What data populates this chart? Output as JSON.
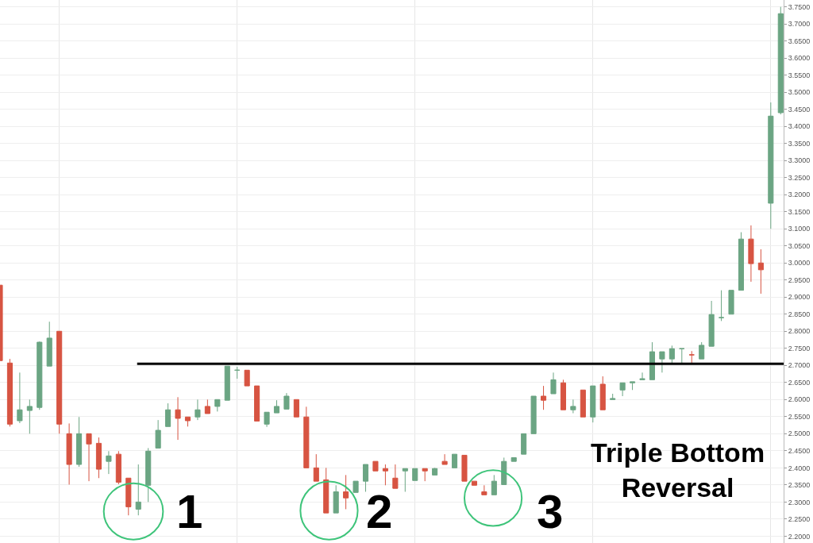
{
  "chart_data": {
    "type": "candlestick",
    "categories": [
      null,
      null,
      null,
      null,
      null,
      null,
      null,
      null,
      null,
      null,
      null,
      null,
      null,
      null,
      null,
      null,
      null,
      null,
      null,
      null,
      null,
      null,
      null,
      null,
      null,
      null,
      null,
      null,
      null,
      null,
      null,
      null,
      null,
      null,
      null,
      null,
      null,
      null,
      null,
      null,
      null,
      null,
      null,
      null,
      null,
      null,
      null,
      null,
      null,
      null,
      null,
      null,
      null,
      null,
      null,
      null,
      null,
      null,
      null,
      null,
      null,
      null,
      null,
      null,
      null,
      null,
      null,
      null,
      null,
      null,
      null,
      null,
      null,
      null,
      null,
      null,
      null,
      null,
      null,
      null
    ],
    "ohlc": [
      [
        2.935,
        2.935,
        2.714,
        2.714
      ],
      [
        2.707,
        2.719,
        2.521,
        2.528
      ],
      [
        2.538,
        2.679,
        2.531,
        2.57
      ],
      [
        2.568,
        2.6,
        2.5,
        2.58
      ],
      [
        2.577,
        2.77,
        2.57,
        2.768
      ],
      [
        2.698,
        2.828,
        2.698,
        2.78
      ],
      [
        2.8,
        2.8,
        2.5,
        2.528
      ],
      [
        2.5,
        2.53,
        2.351,
        2.41
      ],
      [
        2.41,
        2.549,
        2.403,
        2.5
      ],
      [
        2.5,
        2.5,
        2.361,
        2.47
      ],
      [
        2.472,
        2.489,
        2.37,
        2.396
      ],
      [
        2.419,
        2.449,
        2.382,
        2.435
      ],
      [
        2.44,
        2.449,
        2.352,
        2.358
      ],
      [
        2.37,
        2.37,
        2.261,
        2.286
      ],
      [
        2.279,
        2.41,
        2.261,
        2.3
      ],
      [
        2.349,
        2.458,
        2.3,
        2.449
      ],
      [
        2.458,
        2.54,
        2.458,
        2.51
      ],
      [
        2.521,
        2.589,
        2.521,
        2.57
      ],
      [
        2.57,
        2.607,
        2.482,
        2.545
      ],
      [
        2.549,
        2.549,
        2.521,
        2.538
      ],
      [
        2.549,
        2.6,
        2.54,
        2.57
      ],
      [
        2.58,
        2.6,
        2.559,
        2.559
      ],
      [
        2.58,
        2.6,
        2.565,
        2.6
      ],
      [
        2.598,
        2.698,
        2.598,
        2.698
      ],
      [
        2.686,
        2.696,
        2.661,
        2.686
      ],
      [
        2.686,
        2.686,
        2.64,
        2.64
      ],
      [
        2.64,
        2.64,
        2.537,
        2.537
      ],
      [
        2.528,
        2.563,
        2.52,
        2.563
      ],
      [
        2.561,
        2.598,
        2.561,
        2.58
      ],
      [
        2.572,
        2.619,
        2.572,
        2.61
      ],
      [
        2.6,
        2.6,
        2.549,
        2.549
      ],
      [
        2.549,
        2.579,
        2.4,
        2.4
      ],
      [
        2.4,
        2.44,
        2.361,
        2.361
      ],
      [
        2.365,
        2.4,
        2.268,
        2.268
      ],
      [
        2.268,
        2.349,
        2.268,
        2.33
      ],
      [
        2.33,
        2.379,
        2.279,
        2.312
      ],
      [
        2.328,
        2.361,
        2.328,
        2.361
      ],
      [
        2.361,
        2.41,
        2.33,
        2.41
      ],
      [
        2.419,
        2.419,
        2.391,
        2.391
      ],
      [
        2.398,
        2.41,
        2.349,
        2.391
      ],
      [
        2.37,
        2.41,
        2.34,
        2.34
      ],
      [
        2.391,
        2.398,
        2.33,
        2.398
      ],
      [
        2.363,
        2.398,
        2.363,
        2.398
      ],
      [
        2.398,
        2.398,
        2.361,
        2.391
      ],
      [
        2.379,
        2.4,
        2.379,
        2.398
      ],
      [
        2.419,
        2.44,
        2.41,
        2.41
      ],
      [
        2.4,
        2.44,
        2.4,
        2.44
      ],
      [
        2.437,
        2.437,
        2.361,
        2.361
      ],
      [
        2.361,
        2.361,
        2.349,
        2.349
      ],
      [
        2.33,
        2.349,
        2.321,
        2.321
      ],
      [
        2.321,
        2.379,
        2.321,
        2.361
      ],
      [
        2.351,
        2.43,
        2.351,
        2.419
      ],
      [
        2.419,
        2.43,
        2.419,
        2.43
      ],
      [
        2.44,
        2.5,
        2.44,
        2.5
      ],
      [
        2.5,
        2.61,
        2.5,
        2.61
      ],
      [
        2.61,
        2.64,
        2.57,
        2.598
      ],
      [
        2.617,
        2.679,
        2.617,
        2.658
      ],
      [
        2.649,
        2.658,
        2.57,
        2.57
      ],
      [
        2.57,
        2.6,
        2.56,
        2.58
      ],
      [
        2.628,
        2.628,
        2.549,
        2.549
      ],
      [
        2.549,
        2.64,
        2.533,
        2.64
      ],
      [
        2.645,
        2.668,
        2.57,
        2.57
      ],
      [
        2.6,
        2.617,
        2.6,
        2.603
      ],
      [
        2.628,
        2.649,
        2.61,
        2.649
      ],
      [
        2.649,
        2.652,
        2.628,
        2.652
      ],
      [
        2.658,
        2.679,
        2.658,
        2.661
      ],
      [
        2.658,
        2.768,
        2.658,
        2.74
      ],
      [
        2.719,
        2.74,
        2.679,
        2.74
      ],
      [
        2.719,
        2.758,
        2.703,
        2.749
      ],
      [
        2.749,
        2.749,
        2.703,
        2.749
      ],
      [
        2.731,
        2.742,
        2.703,
        2.731
      ],
      [
        2.719,
        2.768,
        2.719,
        2.759
      ],
      [
        2.756,
        2.889,
        2.756,
        2.849
      ],
      [
        2.84,
        2.92,
        2.83,
        2.84
      ],
      [
        2.85,
        2.92,
        2.85,
        2.92
      ],
      [
        2.92,
        3.09,
        2.92,
        3.07
      ],
      [
        3.07,
        3.11,
        2.945,
        2.998
      ],
      [
        3.0,
        3.04,
        2.91,
        2.98
      ],
      [
        3.175,
        3.47,
        3.1,
        3.43
      ],
      [
        3.44,
        3.75,
        3.435,
        3.73
      ]
    ],
    "colors": [
      "#d75442",
      "#d75442",
      "#6ba583",
      "#6ba583",
      "#6ba583",
      "#6ba583",
      "#d75442",
      "#d75442",
      "#6ba583",
      "#d75442",
      "#d75442",
      "#6ba583",
      "#d75442",
      "#d75442",
      "#6ba583",
      "#6ba583",
      "#6ba583",
      "#6ba583",
      "#d75442",
      "#d75442",
      "#6ba583",
      "#d75442",
      "#6ba583",
      "#6ba583",
      "#6ba583",
      "#d75442",
      "#d75442",
      "#6ba583",
      "#6ba583",
      "#6ba583",
      "#d75442",
      "#d75442",
      "#d75442",
      "#d75442",
      "#6ba583",
      "#d75442",
      "#6ba583",
      "#6ba583",
      "#d75442",
      "#d75442",
      "#d75442",
      "#6ba583",
      "#6ba583",
      "#d75442",
      "#6ba583",
      "#d75442",
      "#6ba583",
      "#d75442",
      "#d75442",
      "#d75442",
      "#6ba583",
      "#6ba583",
      "#6ba583",
      "#6ba583",
      "#6ba583",
      "#d75442",
      "#6ba583",
      "#d75442",
      "#6ba583",
      "#d75442",
      "#6ba583",
      "#d75442",
      "#6ba583",
      "#6ba583",
      "#6ba583",
      "#6ba583",
      "#6ba583",
      "#6ba583",
      "#6ba583",
      "#6ba583",
      "#d75442",
      "#6ba583",
      "#6ba583",
      "#6ba583",
      "#6ba583",
      "#6ba583",
      "#d75442",
      "#d75442",
      "#6ba583",
      "#6ba583"
    ],
    "ylim": [
      2.18,
      3.77
    ],
    "yticks": [
      {
        "value": 2.2,
        "label": "2.2000"
      },
      {
        "value": 2.25,
        "label": "2.2500"
      },
      {
        "value": 2.3,
        "label": "2.3000"
      },
      {
        "value": 2.35,
        "label": "2.3500"
      },
      {
        "value": 2.4,
        "label": "2.4000"
      },
      {
        "value": 2.45,
        "label": "2.4500"
      },
      {
        "value": 2.5,
        "label": "2.5000"
      },
      {
        "value": 2.55,
        "label": "2.5500"
      },
      {
        "value": 2.6,
        "label": "2.6000"
      },
      {
        "value": 2.65,
        "label": "2.6500"
      },
      {
        "value": 2.7,
        "label": "2.7000"
      },
      {
        "value": 2.75,
        "label": "2.7500"
      },
      {
        "value": 2.8,
        "label": "2.8000"
      },
      {
        "value": 2.85,
        "label": "2.8500"
      },
      {
        "value": 2.9,
        "label": "2.9000"
      },
      {
        "value": 2.95,
        "label": "2.9500"
      },
      {
        "value": 3.0,
        "label": "3.0000"
      },
      {
        "value": 3.05,
        "label": "3.0500"
      },
      {
        "value": 3.1,
        "label": "3.1000"
      },
      {
        "value": 3.15,
        "label": "3.1500"
      },
      {
        "value": 3.2,
        "label": "3.2000"
      },
      {
        "value": 3.25,
        "label": "3.2500"
      },
      {
        "value": 3.3,
        "label": "3.3000"
      },
      {
        "value": 3.35,
        "label": "3.3500"
      },
      {
        "value": 3.4,
        "label": "3.4000"
      },
      {
        "value": 3.45,
        "label": "3.4500"
      },
      {
        "value": 3.5,
        "label": "3.5000"
      },
      {
        "value": 3.55,
        "label": "3.5500"
      },
      {
        "value": 3.6,
        "label": "3.6000"
      },
      {
        "value": 3.65,
        "label": "3.6500"
      },
      {
        "value": 3.7,
        "label": "3.7000"
      },
      {
        "value": 3.75,
        "label": "3.7500"
      }
    ],
    "grid": true,
    "tick_labels": "y",
    "ref_lines": [
      {
        "axis": "y",
        "value": 2.705,
        "color": "#000000",
        "line_style": "solid"
      }
    ],
    "annotations": [
      "1",
      "2",
      "3",
      "Triple Bottom\nReversal"
    ]
  }
}
